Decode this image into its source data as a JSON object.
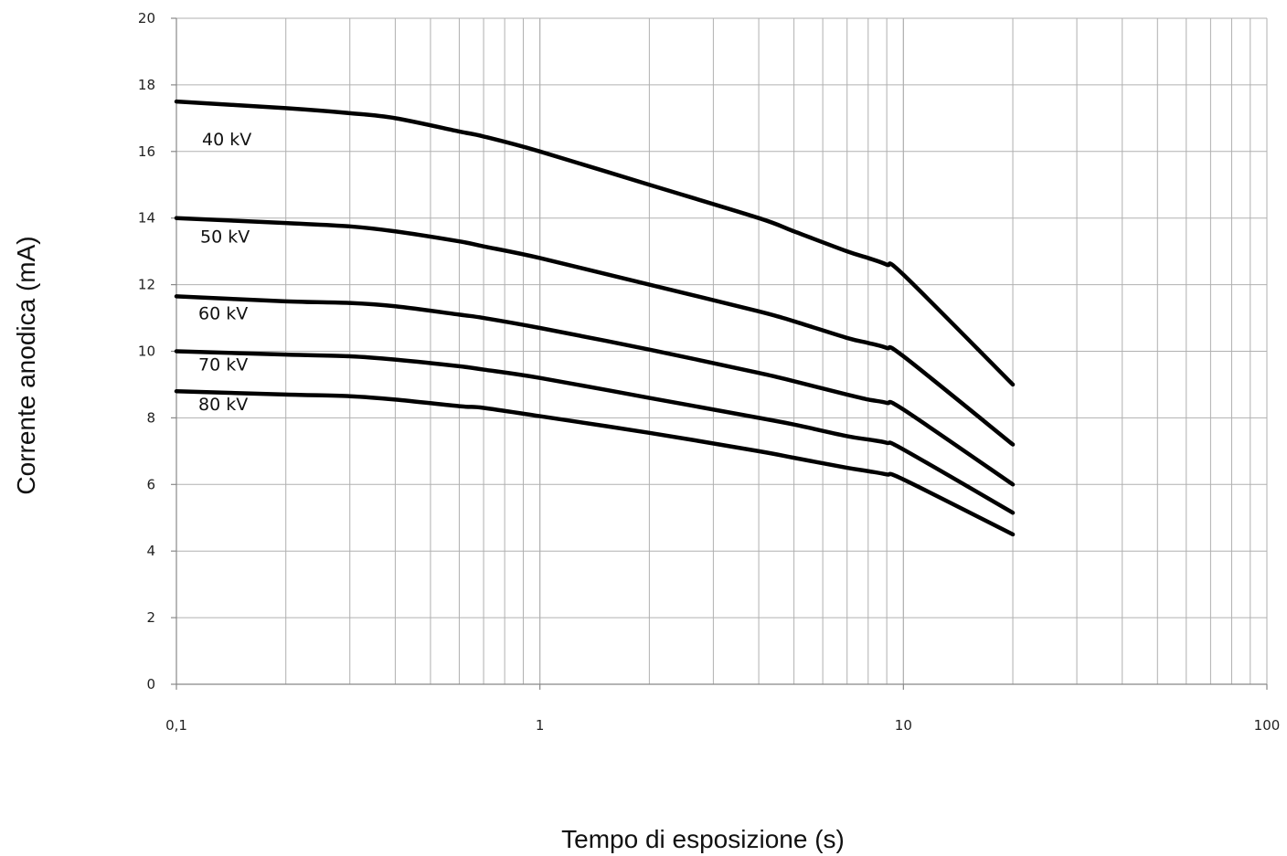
{
  "chart_data": {
    "type": "line",
    "title": "",
    "xlabel": "Tempo di esposizione (s)",
    "ylabel": "Corrente anodica (mA)",
    "xscale": "log",
    "xlim": [
      0.1,
      100
    ],
    "ylim": [
      0,
      20
    ],
    "grid": true,
    "x_ticks": [
      {
        "value": 0.1,
        "label": "0,1"
      },
      {
        "value": 1,
        "label": "1"
      },
      {
        "value": 10,
        "label": "10"
      },
      {
        "value": 100,
        "label": "100"
      }
    ],
    "y_ticks": [
      {
        "value": 0,
        "label": "0"
      },
      {
        "value": 2,
        "label": "2"
      },
      {
        "value": 4,
        "label": "4"
      },
      {
        "value": 6,
        "label": "6"
      },
      {
        "value": 8,
        "label": "8"
      },
      {
        "value": 10,
        "label": "10"
      },
      {
        "value": 12,
        "label": "12"
      },
      {
        "value": 14,
        "label": "14"
      },
      {
        "value": 16,
        "label": "16"
      },
      {
        "value": 18,
        "label": "18"
      },
      {
        "value": 20,
        "label": "20"
      }
    ],
    "line_color": "#000000",
    "grid_color": "#b0b0b0",
    "series": [
      {
        "name": "40 kV",
        "x": [
          0.1,
          0.2,
          0.3,
          0.4,
          0.6,
          0.7,
          1,
          2,
          4,
          5,
          7,
          8,
          9,
          10,
          20
        ],
        "y": [
          17.5,
          17.3,
          17.15,
          17.0,
          16.6,
          16.45,
          16.0,
          15.0,
          14.0,
          13.6,
          13.0,
          12.8,
          12.6,
          12.3,
          9.0
        ]
      },
      {
        "name": "50 kV",
        "x": [
          0.1,
          0.2,
          0.3,
          0.4,
          0.6,
          0.7,
          1,
          2,
          4,
          5,
          7,
          8,
          9,
          10,
          20
        ],
        "y": [
          14.0,
          13.85,
          13.75,
          13.6,
          13.3,
          13.15,
          12.8,
          12.0,
          11.2,
          10.9,
          10.4,
          10.25,
          10.1,
          9.85,
          7.2
        ]
      },
      {
        "name": "60 kV",
        "x": [
          0.1,
          0.2,
          0.3,
          0.4,
          0.6,
          0.7,
          1,
          2,
          4,
          5,
          7,
          8,
          9,
          10,
          20
        ],
        "y": [
          11.65,
          11.5,
          11.45,
          11.35,
          11.1,
          11.0,
          10.7,
          10.05,
          9.35,
          9.1,
          8.7,
          8.55,
          8.45,
          8.25,
          6.0
        ]
      },
      {
        "name": "70 kV",
        "x": [
          0.1,
          0.2,
          0.3,
          0.4,
          0.6,
          0.7,
          1,
          2,
          4,
          5,
          7,
          8,
          9,
          10,
          20
        ],
        "y": [
          10.0,
          9.9,
          9.85,
          9.75,
          9.55,
          9.45,
          9.2,
          8.6,
          8.0,
          7.8,
          7.45,
          7.35,
          7.25,
          7.05,
          5.15
        ]
      },
      {
        "name": "80 kV",
        "x": [
          0.1,
          0.2,
          0.3,
          0.4,
          0.6,
          0.7,
          1,
          2,
          4,
          5,
          7,
          8,
          9,
          10,
          20
        ],
        "y": [
          8.8,
          8.7,
          8.65,
          8.55,
          8.35,
          8.3,
          8.05,
          7.55,
          7.0,
          6.8,
          6.5,
          6.4,
          6.3,
          6.15,
          4.5
        ]
      }
    ]
  }
}
